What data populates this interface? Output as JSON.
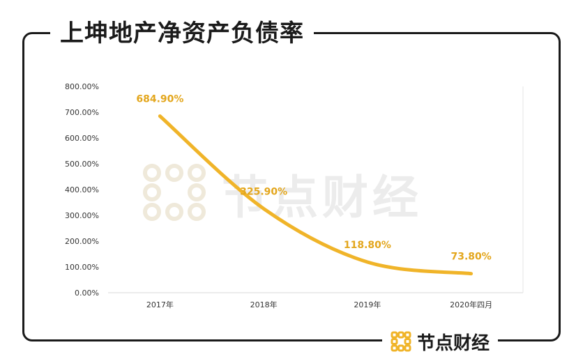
{
  "title": "上坤地产净资产负债率",
  "brand": {
    "name": "节点财经"
  },
  "colors": {
    "line": "#f0b429",
    "label": "#e3a61c",
    "axis_text": "#333333",
    "grid": "#d9d9d9",
    "frame": "#1a1a1a"
  },
  "chart_data": {
    "type": "line",
    "title": "上坤地产净资产负债率",
    "categories": [
      "2017年",
      "2018年",
      "2019年",
      "2020年四月"
    ],
    "series": [
      {
        "values": [
          684.9,
          325.9,
          118.8,
          73.8
        ],
        "labels": [
          "684.90%",
          "325.90%",
          "118.80%",
          "73.80%"
        ]
      }
    ],
    "ylim": [
      0,
      800
    ],
    "yticks": [
      "0.00%",
      "100.00%",
      "200.00%",
      "300.00%",
      "400.00%",
      "500.00%",
      "600.00%",
      "700.00%",
      "800.00%"
    ],
    "xlabel": "",
    "ylabel": "",
    "grid": false
  }
}
